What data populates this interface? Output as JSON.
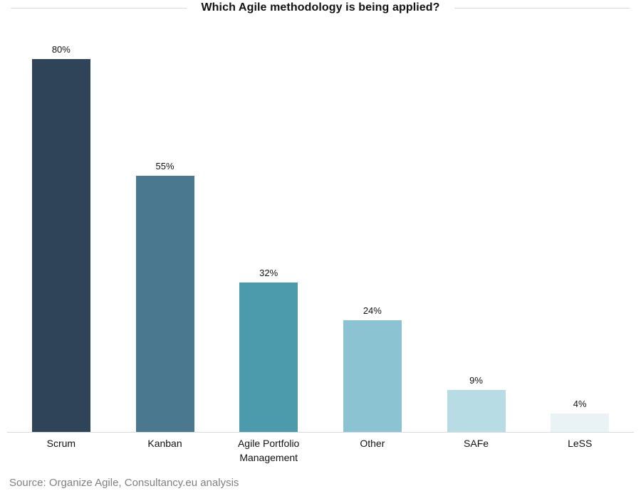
{
  "title": "Which Agile methodology is being applied?",
  "source": "Source: Organize Agile, Consultancy.eu analysis",
  "colors": {
    "rule": "#d9d9d9",
    "axis": "#d9d9d9",
    "title_text": "#111111",
    "label_text": "#111111",
    "source_text": "#808080",
    "background": "#ffffff"
  },
  "chart_data": {
    "type": "bar",
    "title": "Which Agile methodology is being applied?",
    "categories": [
      "Scrum",
      "Kanban",
      "Agile Portfolio Management",
      "Other",
      "SAFe",
      "LeSS"
    ],
    "values": [
      80,
      55,
      32,
      24,
      9,
      4
    ],
    "value_labels": [
      "80%",
      "55%",
      "32%",
      "24%",
      "9%",
      "4%"
    ],
    "bar_colors": [
      "#304459",
      "#49788F",
      "#4C9BAC",
      "#8CC3D2",
      "#B7DCE4",
      "#E9F2F4"
    ],
    "xlabel": "",
    "ylabel": "",
    "ylim": [
      0,
      90
    ],
    "grid": false,
    "legend": "none",
    "annotation": "Source: Organize Agile, Consultancy.eu analysis"
  }
}
